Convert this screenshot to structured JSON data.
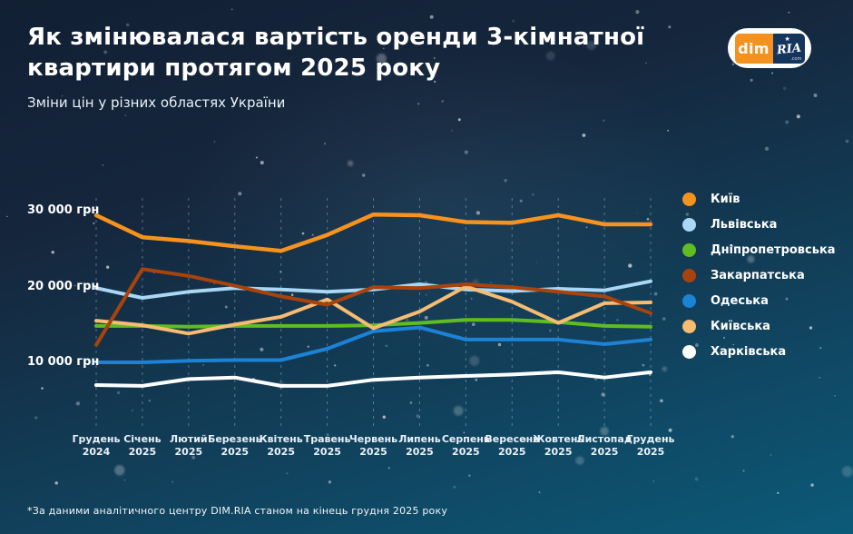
{
  "header": {
    "title": "Як змінювалася вартість оренди 3-кімнатної квартири протягом 2025 року",
    "subtitle": "Зміни цін у різних областях України",
    "logo": {
      "dim": "dim",
      "ria": "RIA",
      "star": "★",
      "com": ".com"
    }
  },
  "footer": {
    "note": "*За даними аналітичного центру DIM.RIA станом на кінець грудня 2025 року"
  },
  "chart_data": {
    "type": "line",
    "title": "Як змінювалася вартість оренди 3-кімнатної квартири протягом 2025 року",
    "subtitle": "Зміни цін у різних областях України",
    "unit": "грн",
    "grid": "vertical-dashed",
    "legend_position": "right",
    "ylim": [
      5000,
      31500
    ],
    "y_ticks": [
      {
        "value": 30000,
        "label": "30 000 грн"
      },
      {
        "value": 20000,
        "label": "20 000 грн"
      },
      {
        "value": 10000,
        "label": "10 000 грн"
      }
    ],
    "categories": [
      {
        "month": "Грудень",
        "year": "2024"
      },
      {
        "month": "Січень",
        "year": "2025"
      },
      {
        "month": "Лютий",
        "year": "2025"
      },
      {
        "month": "Березень",
        "year": "2025"
      },
      {
        "month": "Квітень",
        "year": "2025"
      },
      {
        "month": "Травень",
        "year": "2025"
      },
      {
        "month": "Червень",
        "year": "2025"
      },
      {
        "month": "Липень",
        "year": "2025"
      },
      {
        "month": "Серпень",
        "year": "2025"
      },
      {
        "month": "Вересень",
        "year": "2025"
      },
      {
        "month": "Жовтень",
        "year": "2025"
      },
      {
        "month": "Листопад",
        "year": "2025"
      },
      {
        "month": "Грудень",
        "year": "2025"
      }
    ],
    "series": [
      {
        "name": "Київ",
        "color": "#F6921E",
        "values": [
          29400,
          26500,
          26000,
          25300,
          24700,
          26800,
          29500,
          29400,
          28500,
          28400,
          29400,
          28200,
          28200
        ]
      },
      {
        "name": "Львівська",
        "color": "#A9D7F5",
        "values": [
          19800,
          18500,
          19300,
          19800,
          19600,
          19300,
          19600,
          20300,
          19600,
          19400,
          19700,
          19500,
          20700
        ]
      },
      {
        "name": "Дніпропетровська",
        "color": "#5FBD22",
        "values": [
          14800,
          14800,
          14700,
          14800,
          14800,
          14800,
          14900,
          15200,
          15600,
          15600,
          15300,
          14800,
          14700
        ]
      },
      {
        "name": "Закарпатська",
        "color": "#A8430D",
        "values": [
          12300,
          22300,
          21400,
          20100,
          18700,
          17600,
          19900,
          19800,
          20300,
          19900,
          19300,
          18700,
          16500
        ]
      },
      {
        "name": "Одеська",
        "color": "#1C82D6",
        "values": [
          10000,
          10000,
          10200,
          10300,
          10300,
          11800,
          14100,
          14600,
          13000,
          13000,
          13000,
          12400,
          13000
        ]
      },
      {
        "name": "Київська",
        "color": "#F5BC72",
        "values": [
          15500,
          14900,
          13800,
          15000,
          16000,
          18300,
          14500,
          16700,
          20000,
          18000,
          15200,
          17800,
          17900
        ]
      },
      {
        "name": "Харківська",
        "color": "#FFFFFF",
        "values": [
          7000,
          6900,
          7800,
          8000,
          6900,
          6900,
          7700,
          8000,
          8200,
          8400,
          8700,
          8000,
          8700
        ]
      }
    ]
  }
}
